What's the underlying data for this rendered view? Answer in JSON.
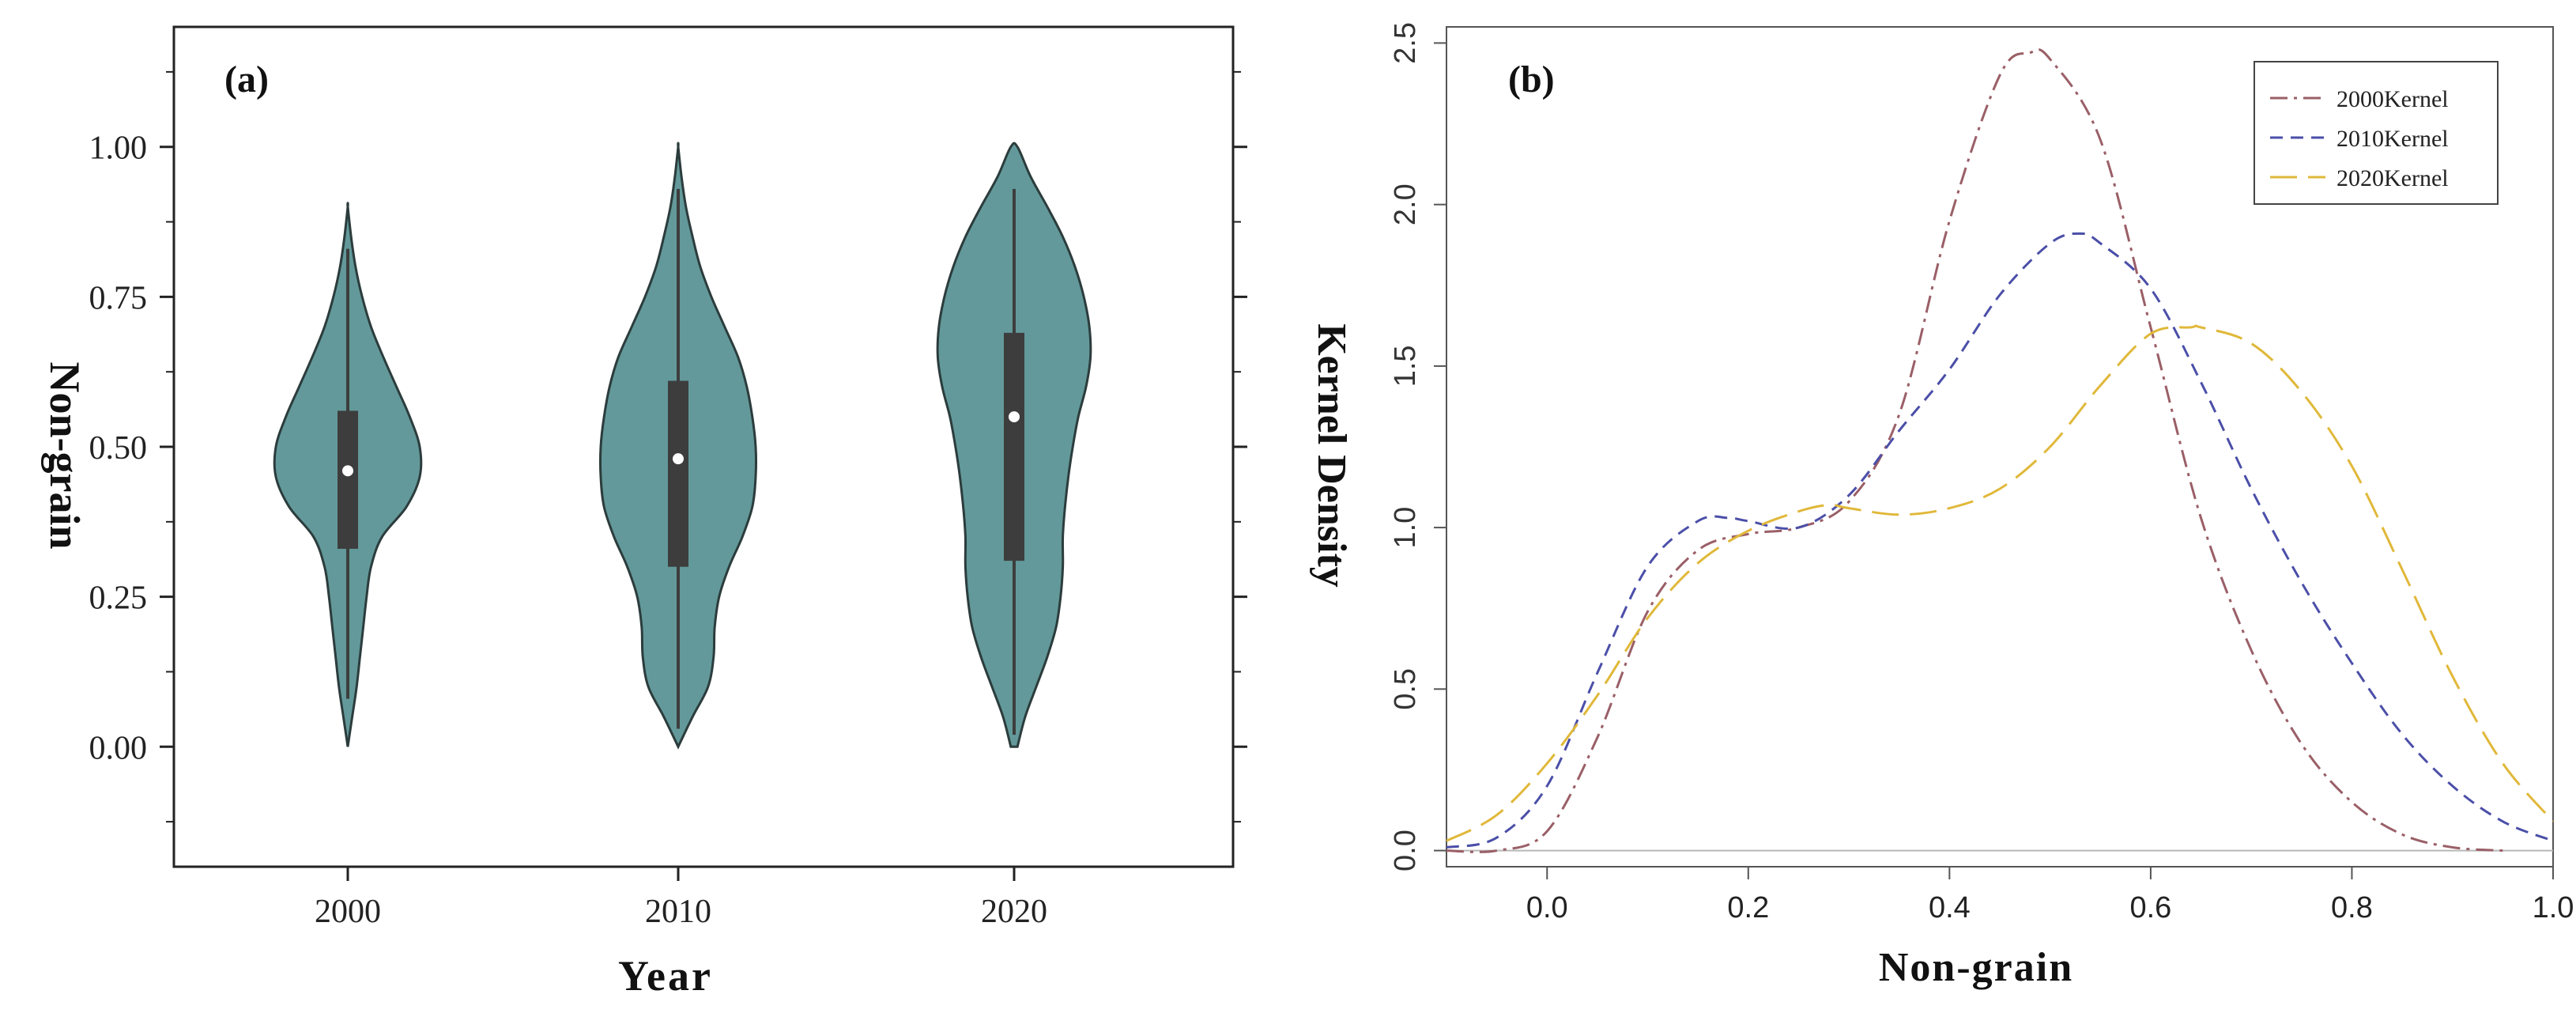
{
  "chart_data": [
    {
      "type": "violin",
      "panel_label": "(a)",
      "xlabel": "Year",
      "ylabel": "Non-grain",
      "categories": [
        "2000",
        "2010",
        "2020"
      ],
      "ylim": [
        -0.2,
        1.2
      ],
      "yticks": [
        0.0,
        0.25,
        0.5,
        0.75,
        1.0
      ],
      "ytick_labels": [
        "0.00",
        "0.25",
        "0.50",
        "0.75",
        "1.00"
      ],
      "fill_color": "#63999a",
      "edge_color": "#2c3c3c",
      "box_color": "#3d3d3d",
      "median_color": "#ffffff",
      "violins": [
        {
          "category": "2000",
          "median": 0.46,
          "q1": 0.33,
          "q3": 0.56,
          "whisker_low": 0.08,
          "whisker_high": 0.83,
          "density": [
            [
              0.0,
              0.0
            ],
            [
              0.05,
              0.04
            ],
            [
              0.1,
              0.08
            ],
            [
              0.15,
              0.11
            ],
            [
              0.2,
              0.14
            ],
            [
              0.25,
              0.17
            ],
            [
              0.3,
              0.21
            ],
            [
              0.35,
              0.31
            ],
            [
              0.4,
              0.53
            ],
            [
              0.45,
              0.65
            ],
            [
              0.5,
              0.65
            ],
            [
              0.55,
              0.56
            ],
            [
              0.6,
              0.44
            ],
            [
              0.65,
              0.32
            ],
            [
              0.7,
              0.21
            ],
            [
              0.75,
              0.13
            ],
            [
              0.8,
              0.07
            ],
            [
              0.85,
              0.03
            ],
            [
              0.9,
              0.0
            ]
          ]
        },
        {
          "category": "2010",
          "median": 0.48,
          "q1": 0.3,
          "q3": 0.61,
          "whisker_low": 0.03,
          "whisker_high": 0.93,
          "density": [
            [
              0.0,
              0.0
            ],
            [
              0.05,
              0.13
            ],
            [
              0.1,
              0.27
            ],
            [
              0.15,
              0.32
            ],
            [
              0.2,
              0.33
            ],
            [
              0.25,
              0.37
            ],
            [
              0.3,
              0.46
            ],
            [
              0.35,
              0.58
            ],
            [
              0.4,
              0.67
            ],
            [
              0.45,
              0.7
            ],
            [
              0.5,
              0.7
            ],
            [
              0.55,
              0.67
            ],
            [
              0.6,
              0.62
            ],
            [
              0.65,
              0.54
            ],
            [
              0.7,
              0.42
            ],
            [
              0.75,
              0.3
            ],
            [
              0.8,
              0.2
            ],
            [
              0.85,
              0.13
            ],
            [
              0.9,
              0.07
            ],
            [
              0.95,
              0.03
            ],
            [
              1.0,
              0.0
            ]
          ]
        },
        {
          "category": "2020",
          "median": 0.55,
          "q1": 0.31,
          "q3": 0.69,
          "whisker_low": 0.02,
          "whisker_high": 0.93,
          "density": [
            [
              0.0,
              0.03
            ],
            [
              0.05,
              0.1
            ],
            [
              0.1,
              0.2
            ],
            [
              0.15,
              0.3
            ],
            [
              0.2,
              0.38
            ],
            [
              0.25,
              0.42
            ],
            [
              0.3,
              0.44
            ],
            [
              0.35,
              0.44
            ],
            [
              0.4,
              0.46
            ],
            [
              0.45,
              0.49
            ],
            [
              0.5,
              0.53
            ],
            [
              0.55,
              0.58
            ],
            [
              0.6,
              0.65
            ],
            [
              0.65,
              0.69
            ],
            [
              0.7,
              0.68
            ],
            [
              0.75,
              0.63
            ],
            [
              0.8,
              0.55
            ],
            [
              0.85,
              0.44
            ],
            [
              0.9,
              0.3
            ],
            [
              0.95,
              0.15
            ],
            [
              1.0,
              0.03
            ]
          ]
        }
      ]
    },
    {
      "type": "line",
      "panel_label": "(b)",
      "xlabel": "Non-grain",
      "ylabel": "Kernel Density",
      "xlim": [
        -0.1,
        1.0
      ],
      "ylim": [
        -0.05,
        2.55
      ],
      "xticks": [
        0.0,
        0.2,
        0.4,
        0.6,
        0.8,
        1.0
      ],
      "xtick_labels": [
        "0.0",
        "0.2",
        "0.4",
        "0.6",
        "0.8",
        "1.0"
      ],
      "yticks": [
        0.0,
        0.5,
        1.0,
        1.5,
        2.0,
        2.5
      ],
      "ytick_labels": [
        "0.0",
        "0.5",
        "1.0",
        "1.5",
        "2.0",
        "2.5"
      ],
      "baseline": 0.0,
      "legend_position": "top-right",
      "series": [
        {
          "name": "2000Kernel",
          "color": "#9a5f67",
          "dash": "dashdot",
          "x": [
            -0.1,
            -0.05,
            0.0,
            0.05,
            0.1,
            0.15,
            0.2,
            0.25,
            0.3,
            0.35,
            0.4,
            0.45,
            0.48,
            0.5,
            0.55,
            0.6,
            0.65,
            0.7,
            0.75,
            0.8,
            0.85,
            0.9,
            0.95
          ],
          "y": [
            0.0,
            0.0,
            0.06,
            0.35,
            0.74,
            0.93,
            0.98,
            1.0,
            1.08,
            1.35,
            1.95,
            2.4,
            2.47,
            2.45,
            2.2,
            1.62,
            1.03,
            0.62,
            0.33,
            0.15,
            0.05,
            0.01,
            0.0
          ]
        },
        {
          "name": "2010Kernel",
          "color": "#4b4fa8",
          "dash": "dashed",
          "x": [
            -0.1,
            -0.05,
            0.0,
            0.05,
            0.1,
            0.15,
            0.18,
            0.2,
            0.25,
            0.3,
            0.35,
            0.4,
            0.45,
            0.5,
            0.53,
            0.55,
            0.6,
            0.65,
            0.7,
            0.75,
            0.8,
            0.85,
            0.9,
            0.95,
            1.0
          ],
          "y": [
            0.01,
            0.04,
            0.2,
            0.55,
            0.88,
            1.02,
            1.03,
            1.02,
            1.0,
            1.1,
            1.3,
            1.49,
            1.72,
            1.88,
            1.91,
            1.88,
            1.74,
            1.45,
            1.12,
            0.83,
            0.58,
            0.36,
            0.2,
            0.09,
            0.03
          ]
        },
        {
          "name": "2020Kernel",
          "color": "#e0b83a",
          "dash": "longdash",
          "x": [
            -0.1,
            -0.05,
            0.0,
            0.05,
            0.1,
            0.15,
            0.2,
            0.25,
            0.28,
            0.3,
            0.35,
            0.4,
            0.45,
            0.5,
            0.55,
            0.6,
            0.64,
            0.65,
            0.7,
            0.75,
            0.8,
            0.85,
            0.9,
            0.95,
            1.0
          ],
          "y": [
            0.03,
            0.11,
            0.27,
            0.48,
            0.72,
            0.89,
            0.99,
            1.05,
            1.07,
            1.06,
            1.04,
            1.06,
            1.12,
            1.25,
            1.44,
            1.6,
            1.62,
            1.62,
            1.57,
            1.42,
            1.19,
            0.87,
            0.54,
            0.27,
            0.09
          ]
        }
      ]
    }
  ]
}
